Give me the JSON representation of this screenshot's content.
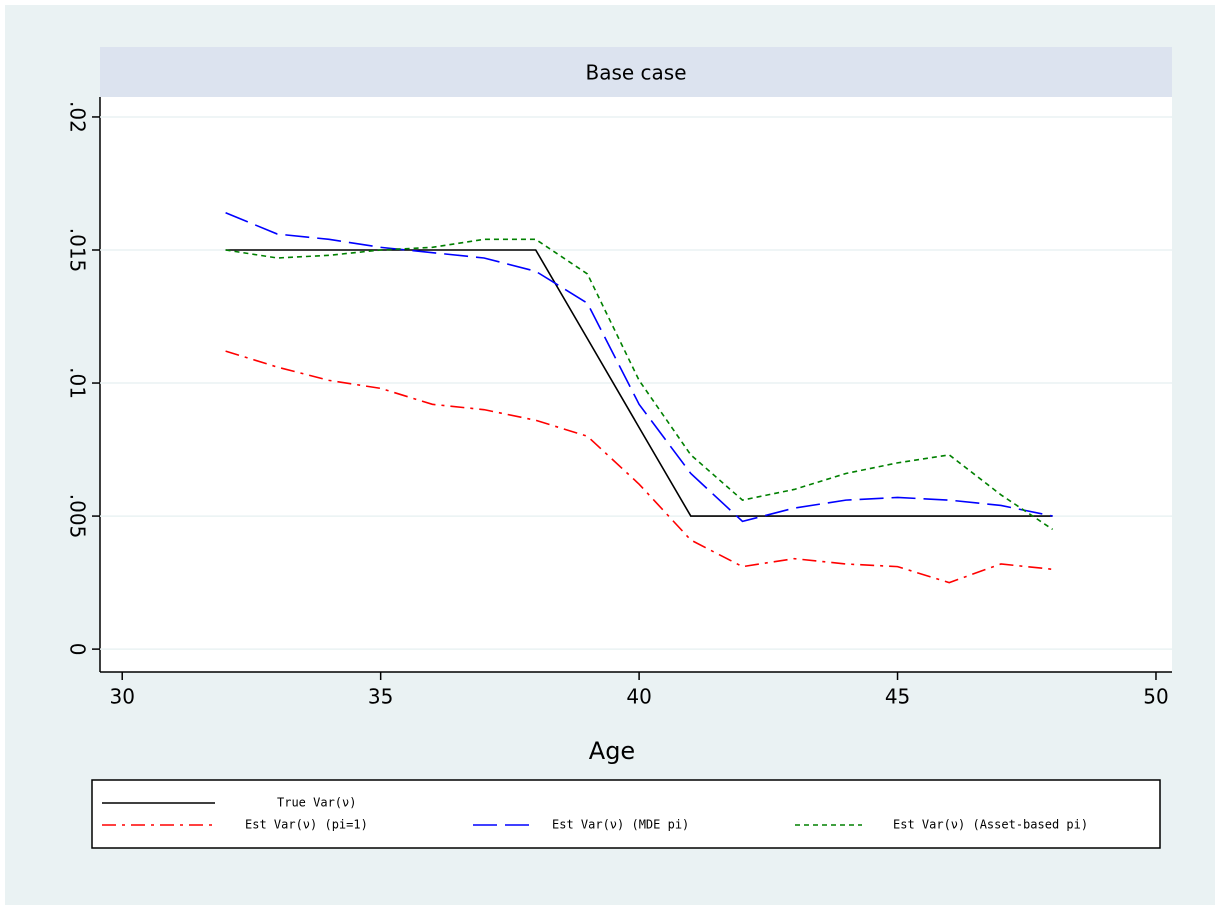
{
  "chart_data": {
    "type": "line",
    "title": "Base case",
    "x_label": "Age",
    "x": [
      32,
      33,
      34,
      35,
      36,
      37,
      38,
      39,
      40,
      41,
      42,
      43,
      44,
      45,
      46,
      47,
      48
    ],
    "series": [
      {
        "name": "True Var(ν)",
        "color": "#000000",
        "dash": "solid",
        "values": [
          0.015,
          0.015,
          0.015,
          0.015,
          0.015,
          0.015,
          0.015,
          0.01167,
          0.00833,
          0.005,
          0.005,
          0.005,
          0.005,
          0.005,
          0.005,
          0.005,
          0.005
        ]
      },
      {
        "name": "Est Var(ν) (pi=1)",
        "color": "#ff0000",
        "dash": "dashdot",
        "values": [
          0.0112,
          0.0106,
          0.0101,
          0.0098,
          0.0092,
          0.009,
          0.0086,
          0.008,
          0.0062,
          0.0041,
          0.0031,
          0.0034,
          0.0032,
          0.0031,
          0.0025,
          0.0032,
          0.003
        ]
      },
      {
        "name": "Est Var(ν) (MDE pi)",
        "color": "#0000ff",
        "dash": "longdash",
        "values": [
          0.0164,
          0.0156,
          0.0154,
          0.0151,
          0.0149,
          0.0147,
          0.0142,
          0.013,
          0.0092,
          0.0066,
          0.0048,
          0.0053,
          0.0056,
          0.0057,
          0.0056,
          0.0054,
          0.005
        ]
      },
      {
        "name": "Est Var(ν) (Asset-based pi)",
        "color": "#008000",
        "dash": "shortdash",
        "values": [
          0.015,
          0.0147,
          0.0148,
          0.015,
          0.0151,
          0.0154,
          0.0154,
          0.0141,
          0.0101,
          0.0073,
          0.0056,
          0.006,
          0.0066,
          0.007,
          0.0073,
          0.0058,
          0.0045
        ]
      }
    ],
    "xlim": [
      29.57,
      50.31
    ],
    "xticks": [
      30,
      35,
      40,
      45,
      50
    ],
    "ylim": [
      -0.00086,
      0.02075
    ],
    "yticks": [
      0,
      {
        "value": 0.005,
        "label": ".005"
      },
      {
        "value": 0.01,
        "label": ".01"
      },
      {
        "value": 0.015,
        "label": ".015"
      },
      {
        "value": 0.02,
        "label": ".02"
      }
    ],
    "grid": true
  }
}
